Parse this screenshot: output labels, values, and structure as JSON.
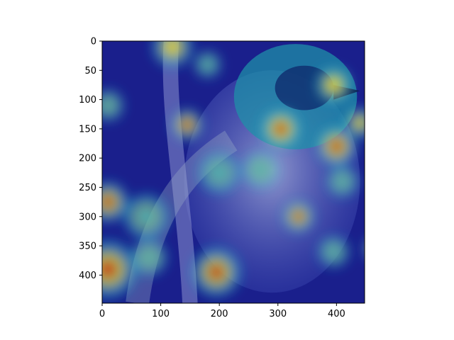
{
  "chart_data": {
    "type": "heatmap",
    "title": "",
    "xlabel": "",
    "ylabel": "",
    "xlim": [
      0,
      448
    ],
    "ylim": [
      448,
      0
    ],
    "x_ticks": [
      0,
      100,
      200,
      300,
      400
    ],
    "y_ticks": [
      0,
      50,
      100,
      150,
      200,
      250,
      300,
      350,
      400
    ],
    "colormap": "jet",
    "overlay": "saliency heatmap over photo of a bird (green jay) perched on a branch",
    "hotspots": [
      {
        "x": 120,
        "y": 10,
        "v": 0.7,
        "r": 18
      },
      {
        "x": 145,
        "y": 143,
        "v": 0.9,
        "r": 14
      },
      {
        "x": 180,
        "y": 40,
        "v": 0.45,
        "r": 12
      },
      {
        "x": 305,
        "y": 150,
        "v": 1.0,
        "r": 18
      },
      {
        "x": 395,
        "y": 75,
        "v": 0.8,
        "r": 16
      },
      {
        "x": 400,
        "y": 180,
        "v": 0.95,
        "r": 18
      },
      {
        "x": 440,
        "y": 140,
        "v": 0.6,
        "r": 14
      },
      {
        "x": 335,
        "y": 300,
        "v": 0.85,
        "r": 14
      },
      {
        "x": 10,
        "y": 110,
        "v": 0.55,
        "r": 14
      },
      {
        "x": 10,
        "y": 275,
        "v": 0.9,
        "r": 18
      },
      {
        "x": 10,
        "y": 390,
        "v": 0.95,
        "r": 26
      },
      {
        "x": 75,
        "y": 300,
        "v": 0.55,
        "r": 20
      },
      {
        "x": 80,
        "y": 370,
        "v": 0.55,
        "r": 16
      },
      {
        "x": 195,
        "y": 395,
        "v": 0.9,
        "r": 22
      },
      {
        "x": 270,
        "y": 220,
        "v": 0.5,
        "r": 16
      },
      {
        "x": 200,
        "y": 225,
        "v": 0.45,
        "r": 18
      },
      {
        "x": 470,
        "y": 355,
        "v": 0.6,
        "r": 12
      },
      {
        "x": 395,
        "y": 360,
        "v": 0.5,
        "r": 14
      },
      {
        "x": 410,
        "y": 240,
        "v": 0.5,
        "r": 14
      }
    ]
  },
  "colors": {
    "low": "#1a1f8c",
    "mid": "#1fb0c8",
    "high": "#f2d22a",
    "peak": "#c81e0c",
    "frame": "#000000"
  }
}
